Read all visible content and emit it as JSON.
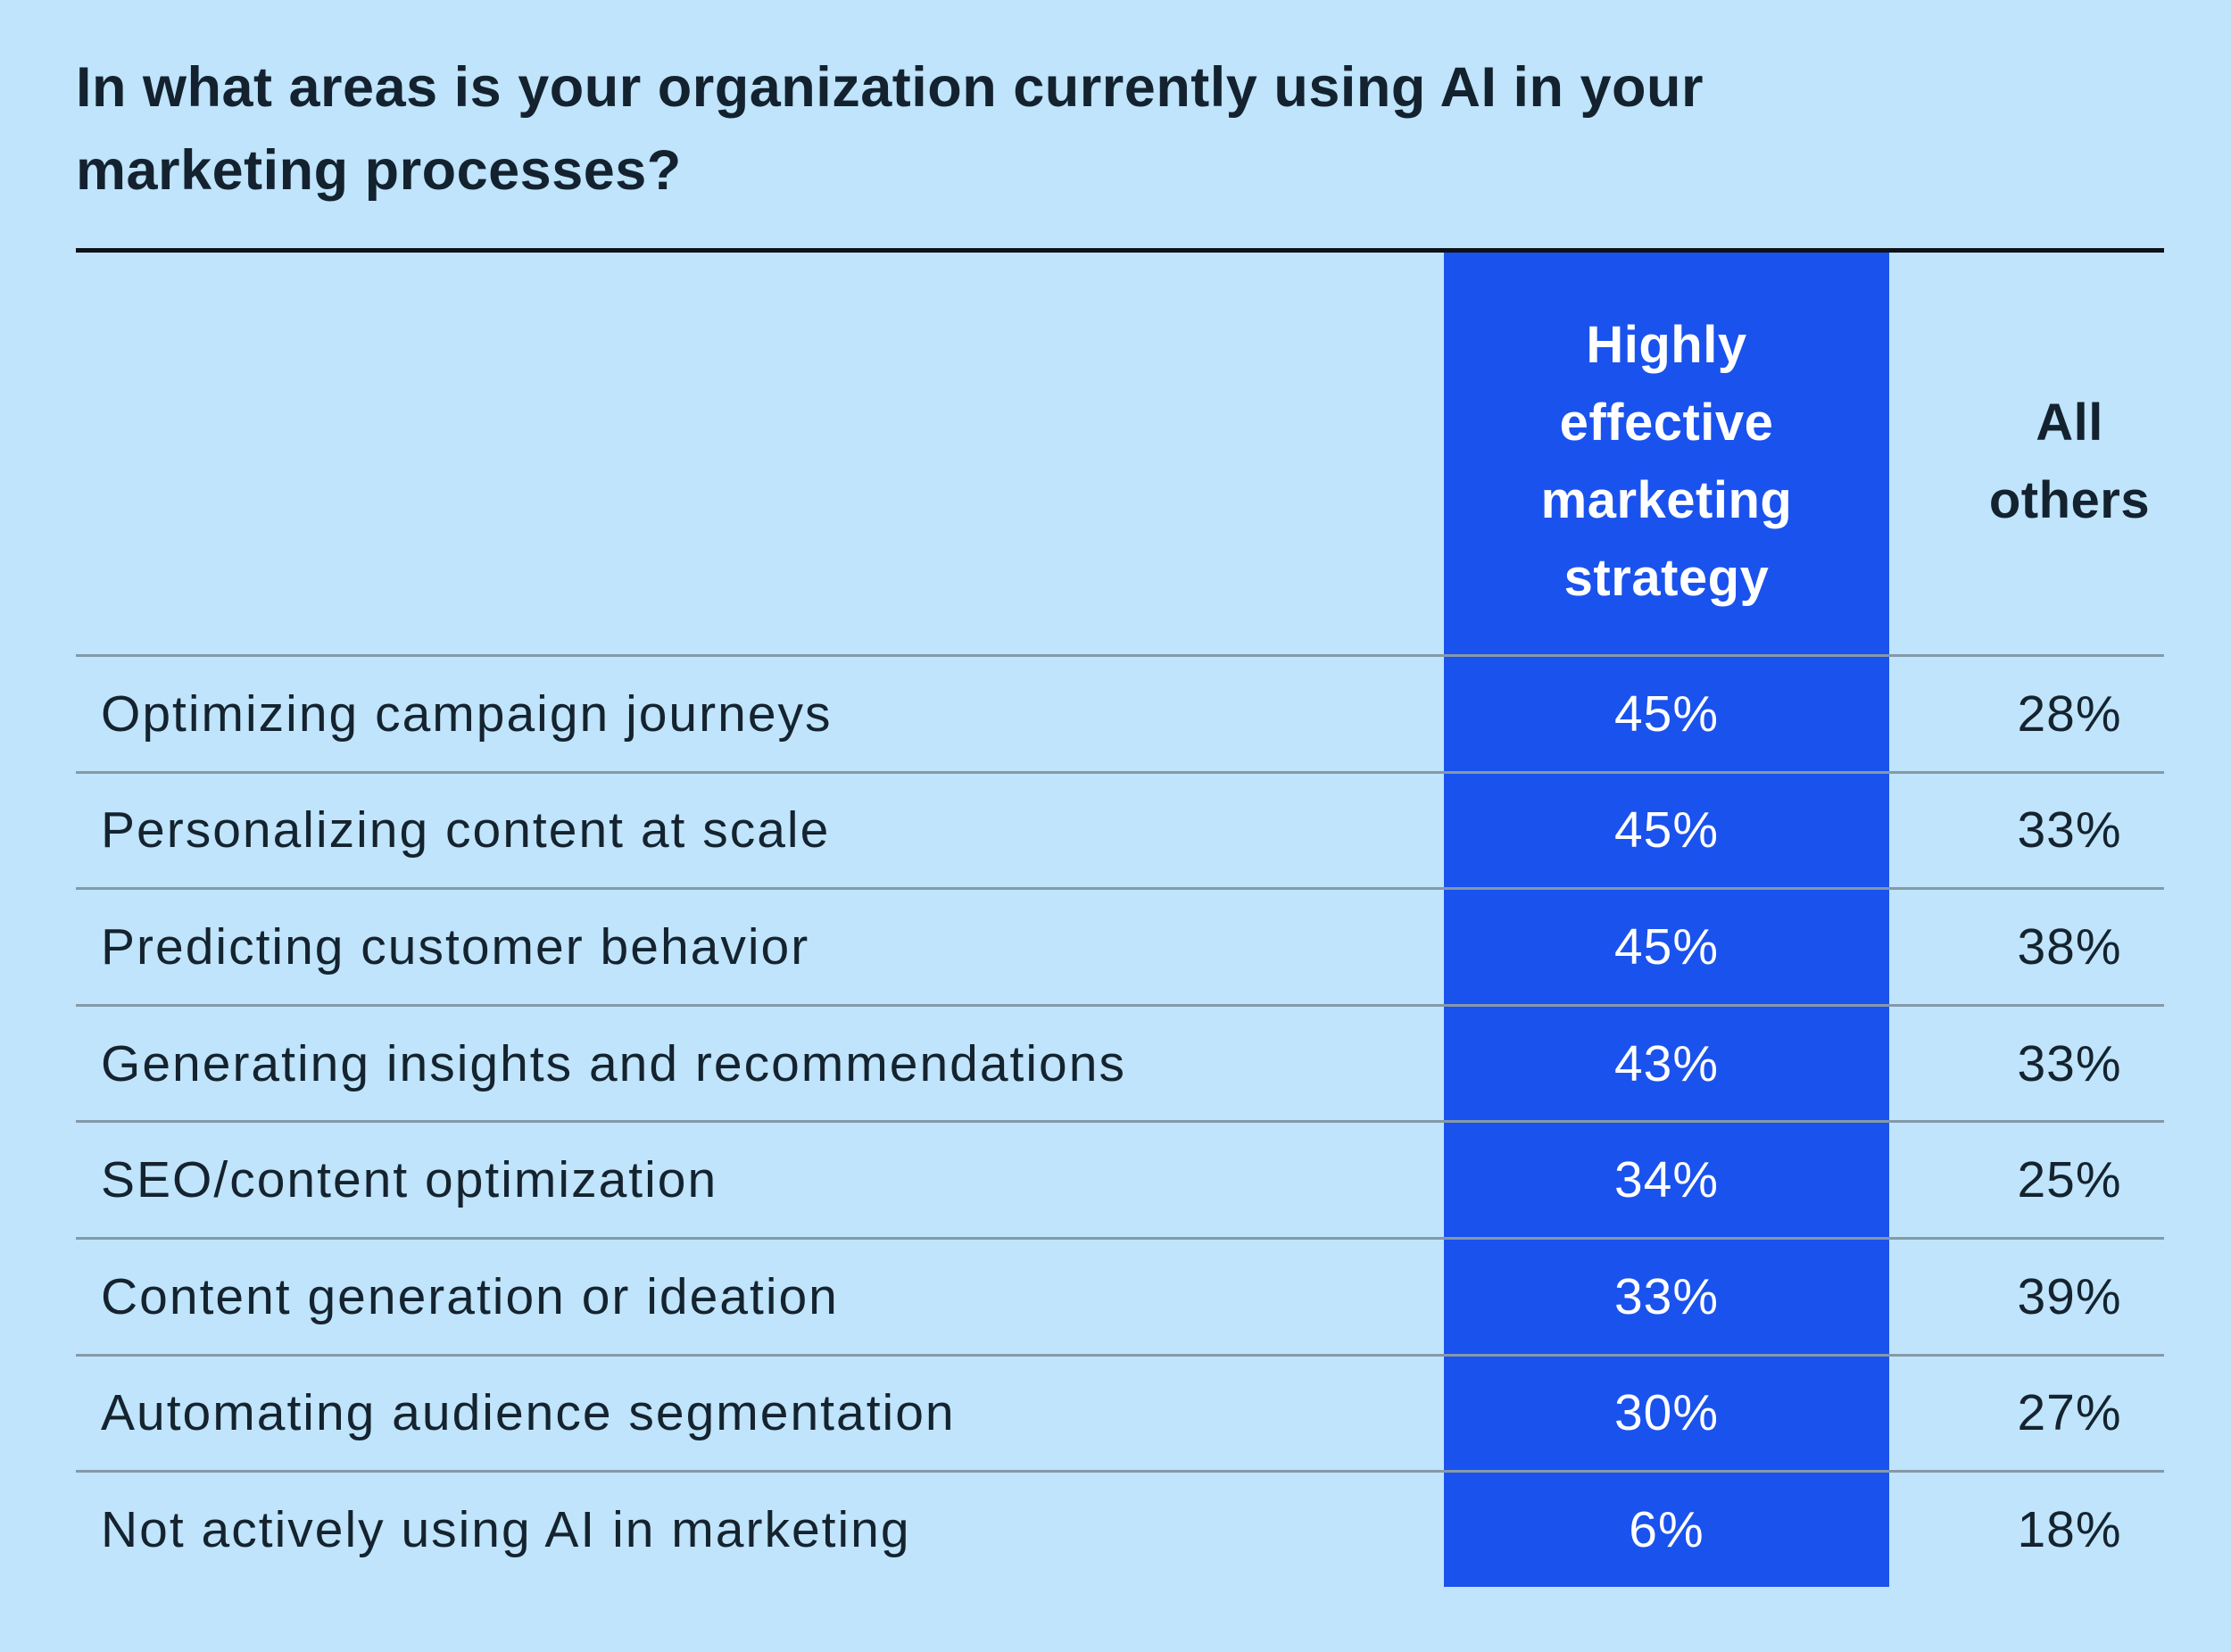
{
  "title": {
    "line1": "In what areas is your organization currently using AI in your",
    "line2": "marketing processes?"
  },
  "columns": {
    "highlight_header": "Highly effective marketing strategy",
    "others_header": "All others"
  },
  "rows": [
    {
      "label": "Optimizing campaign journeys",
      "highlight": "45%",
      "others": "28%"
    },
    {
      "label": "Personalizing content at scale",
      "highlight": "45%",
      "others": "33%"
    },
    {
      "label": "Predicting customer behavior",
      "highlight": "45%",
      "others": "38%"
    },
    {
      "label": "Generating insights and recommendations",
      "highlight": "43%",
      "others": "33%"
    },
    {
      "label": "SEO/content optimization",
      "highlight": "34%",
      "others": "25%"
    },
    {
      "label": "Content generation or ideation",
      "highlight": "33%",
      "others": "39%"
    },
    {
      "label": "Automating audience segmentation",
      "highlight": "30%",
      "others": "27%"
    },
    {
      "label": "Not actively using AI in marketing",
      "highlight": "6%",
      "others": "18%"
    }
  ],
  "colors": {
    "background": "#bfe4fb",
    "highlight_column": "#1a52ee",
    "dark_text": "#15232f",
    "white_text": "#ffffff",
    "divider": "#8599a8",
    "title_rule": "#0c1218"
  },
  "chart_data": {
    "type": "table",
    "title": "In what areas is your organization currently using AI in your marketing processes?",
    "categories": [
      "Optimizing campaign journeys",
      "Personalizing content at scale",
      "Predicting customer behavior",
      "Generating insights and recommendations",
      "SEO/content optimization",
      "Content generation or ideation",
      "Automating audience segmentation",
      "Not actively using AI in marketing"
    ],
    "series": [
      {
        "name": "Highly effective marketing strategy",
        "values": [
          45,
          45,
          45,
          43,
          34,
          33,
          30,
          6
        ],
        "unit": "%"
      },
      {
        "name": "All others",
        "values": [
          28,
          33,
          38,
          33,
          25,
          39,
          27,
          18
        ],
        "unit": "%"
      }
    ],
    "legend_position": "column-headers",
    "grid": "horizontal-row-dividers",
    "highlight_column": "Highly effective marketing strategy"
  }
}
